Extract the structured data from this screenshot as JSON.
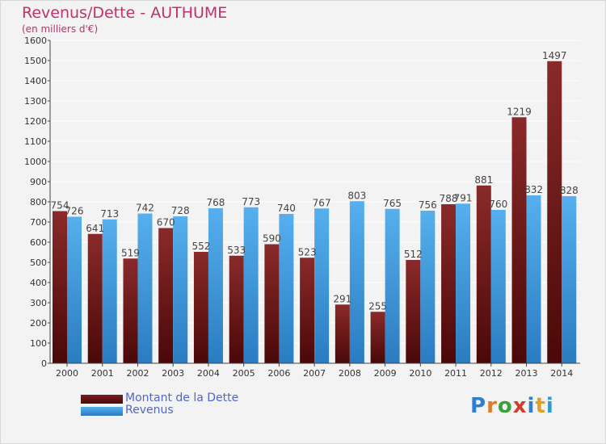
{
  "header": {
    "title": "Revenus/Dette - AUTHUME",
    "subtitle": "(en milliers d'€)"
  },
  "legend": {
    "debt_label": "Montant de la Dette",
    "revenue_label": "Revenus"
  },
  "logo": {
    "letters": [
      "P",
      "r",
      "o",
      "x",
      "i",
      "t",
      "i"
    ],
    "colors": [
      "#2f7fd0",
      "#e07a2a",
      "#3aa03a",
      "#d23c2c",
      "#2f7fd0",
      "#e0a020",
      "#2f9ad0"
    ]
  },
  "colors": {
    "debt": "#7a1e1e",
    "debt_dark": "#4a0808",
    "revenue": "#4aa3e6",
    "revenue_dark": "#2a7cc0",
    "title": "#c0306b",
    "legend_text": "#5066c8"
  },
  "chart_data": {
    "type": "bar",
    "categories": [
      "2000",
      "2001",
      "2002",
      "2003",
      "2004",
      "2005",
      "2006",
      "2007",
      "2008",
      "2009",
      "2010",
      "2011",
      "2012",
      "2013",
      "2014"
    ],
    "series": [
      {
        "name": "Montant de la Dette",
        "values": [
          754,
          641,
          519,
          670,
          552,
          533,
          590,
          523,
          291,
          255,
          512,
          788,
          881,
          1219,
          1497
        ]
      },
      {
        "name": "Revenus",
        "values": [
          726,
          713,
          742,
          728,
          768,
          773,
          740,
          767,
          803,
          765,
          756,
          791,
          760,
          832,
          828
        ]
      }
    ],
    "data_labels": {
      "debt": [
        "754",
        "641",
        "519",
        "670",
        "552",
        "533",
        "590",
        "523",
        "291",
        "255",
        "512",
        "788",
        "881",
        "1219",
        "1497"
      ],
      "revenue": [
        "726",
        "713",
        "742",
        "728",
        "768",
        "773",
        "740",
        "767",
        "803",
        "765",
        "756",
        "791",
        "760",
        "832",
        "828"
      ]
    },
    "title": "Revenus/Dette - AUTHUME",
    "ylim": [
      0,
      1600
    ],
    "yticks": [
      0,
      100,
      200,
      300,
      400,
      500,
      600,
      700,
      800,
      900,
      1000,
      1100,
      1200,
      1300,
      1400,
      1500,
      1600
    ],
    "grid": true,
    "legend": "bottom-left"
  }
}
